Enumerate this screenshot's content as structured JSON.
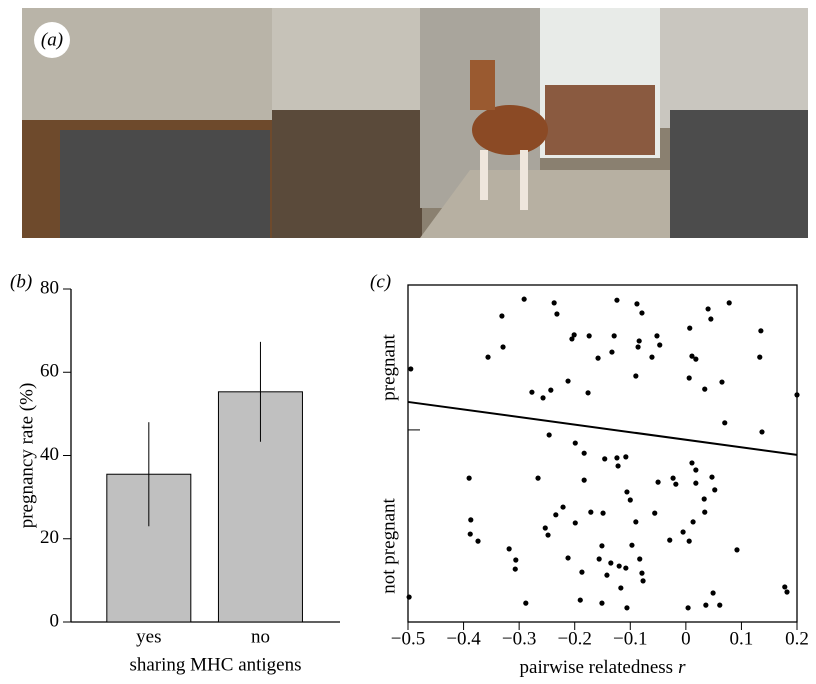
{
  "photo_label": "(a)",
  "chart_data": [
    {
      "type": "bar",
      "panel_label": "(b)",
      "categories": [
        "yes",
        "no"
      ],
      "values": [
        35.5,
        55.3
      ],
      "errors": [
        12.5,
        12
      ],
      "color": "#c0c0c0",
      "xlabel": "sharing MHC antigens",
      "ylabel": "pregnancy rate (%)",
      "ylim": [
        0,
        80
      ],
      "yticks": [
        0,
        20,
        40,
        60,
        80
      ]
    },
    {
      "type": "scatter",
      "panel_label": "(c)",
      "xlabel": "pairwise relatedness",
      "xlabel_variable": "r",
      "y_category_labels": [
        "not pregnant",
        "pregnant"
      ],
      "color": "#000000",
      "xlim": [
        -0.5,
        0.2
      ],
      "ylim": [
        0,
        1
      ],
      "xticks": [
        {
          "value": -0.5,
          "label": "−0.5"
        },
        {
          "value": -0.4,
          "label": "−0.4"
        },
        {
          "value": -0.3,
          "label": "−0.3"
        },
        {
          "value": -0.2,
          "label": "−0.2"
        },
        {
          "value": -0.1,
          "label": "−0.1"
        },
        0,
        0.1,
        0.2
      ],
      "x": [
        -0.495,
        -0.356,
        -0.329,
        -0.331,
        -0.291,
        -0.237,
        -0.232,
        -0.201,
        -0.205,
        -0.174,
        -0.129,
        -0.124,
        -0.088,
        -0.079,
        -0.052,
        0.007,
        0.04,
        0.045,
        0.078,
        0.135,
        0.133,
        0.2,
        0.137,
        0.07,
        0.034,
        0.065,
        0.018,
        0.011,
        0.006,
        -0.084,
        -0.086,
        -0.09,
        -0.133,
        -0.158,
        -0.061,
        -0.176,
        -0.212,
        -0.243,
        -0.277,
        -0.257,
        -0.047,
        -0.498,
        -0.39,
        -0.387,
        -0.388,
        -0.374,
        -0.318,
        -0.306,
        -0.307,
        -0.288,
        -0.266,
        -0.246,
        -0.199,
        -0.183,
        -0.146,
        -0.124,
        -0.122,
        -0.108,
        -0.183,
        -0.221,
        -0.234,
        -0.171,
        -0.149,
        -0.151,
        -0.156,
        -0.135,
        -0.142,
        -0.12,
        -0.108,
        -0.083,
        -0.079,
        -0.077,
        -0.117,
        -0.151,
        -0.19,
        -0.187,
        -0.248,
        -0.253,
        -0.199,
        -0.1,
        -0.106,
        -0.05,
        -0.018,
        -0.023,
        0.011,
        0.018,
        0.018,
        0.047,
        0.033,
        0.052,
        0.034,
        0.013,
        -0.005,
        -0.029,
        0.006,
        -0.097,
        -0.09,
        -0.056,
        -0.212,
        -0.106,
        0.004,
        0.036,
        0.049,
        0.061,
        0.092,
        0.178,
        0.182
      ],
      "y": [
        0.751,
        0.786,
        0.816,
        0.908,
        0.958,
        0.947,
        0.914,
        0.852,
        0.84,
        0.849,
        0.849,
        0.955,
        0.944,
        0.917,
        0.849,
        0.872,
        0.929,
        0.899,
        0.947,
        0.864,
        0.786,
        0.674,
        0.564,
        0.591,
        0.691,
        0.712,
        0.78,
        0.789,
        0.724,
        0.834,
        0.816,
        0.73,
        0.801,
        0.783,
        0.786,
        0.68,
        0.715,
        0.688,
        0.682,
        0.665,
        0.822,
        0.074,
        0.427,
        0.303,
        0.261,
        0.24,
        0.217,
        0.184,
        0.157,
        0.056,
        0.427,
        0.555,
        0.531,
        0.501,
        0.484,
        0.487,
        0.463,
        0.49,
        0.421,
        0.341,
        0.318,
        0.326,
        0.323,
        0.226,
        0.187,
        0.175,
        0.139,
        0.166,
        0.16,
        0.187,
        0.145,
        0.122,
        0.101,
        0.056,
        0.065,
        0.148,
        0.258,
        0.279,
        0.294,
        0.362,
        0.386,
        0.415,
        0.409,
        0.427,
        0.472,
        0.451,
        0.412,
        0.43,
        0.365,
        0.392,
        0.326,
        0.297,
        0.267,
        0.243,
        0.24,
        0.228,
        0.297,
        0.323,
        0.19,
        0.042,
        0.042,
        0.05,
        0.086,
        0.05,
        0.214,
        0.104,
        0.089
      ],
      "fit": {
        "x": [
          -0.5,
          0.2
        ],
        "y": [
          0.653,
          0.496
        ]
      },
      "category_tick": 0.57
    }
  ]
}
